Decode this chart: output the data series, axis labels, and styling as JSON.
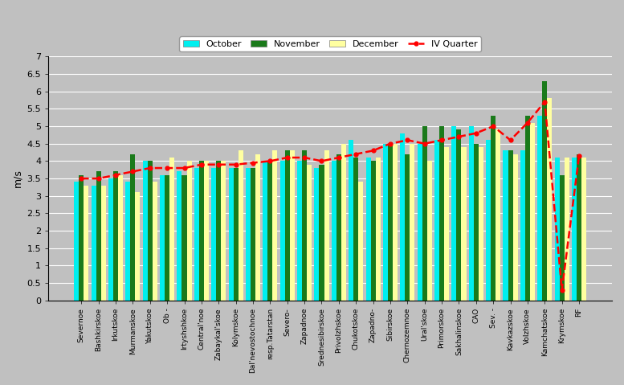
{
  "categories": [
    "Severnoe",
    "Bashkirskoe",
    "Irkutskoe",
    "Murmanskoe",
    "Yakutskoe",
    "Ob -",
    "Irtyshshkoe",
    "Central'noe",
    "Zabaykal'skoe",
    "Kolymskoe",
    "Dal'nevostochnoe",
    "resp.Tatarstan",
    "Severo-",
    "Zapadnoe",
    "Srednesibirskoe",
    "Privolzhskoe",
    "Chukotskoe",
    "Zapadno-",
    "Sibirskoe",
    "Chernozemnoe",
    "Ural'skoe",
    "Primorskoe",
    "Sakhalinskoe",
    "CAO",
    "Sev. -",
    "Kavkazskoe",
    "Volzhskoe",
    "Kamchatskoe",
    "Krymskoe",
    "RF"
  ],
  "october": [
    3.4,
    3.3,
    3.5,
    3.4,
    4.0,
    3.6,
    3.7,
    3.8,
    3.8,
    3.8,
    3.8,
    4.0,
    4.0,
    4.0,
    3.8,
    4.0,
    4.6,
    4.1,
    4.5,
    4.8,
    4.5,
    4.6,
    5.0,
    5.0,
    4.6,
    4.3,
    4.3,
    5.3,
    4.1,
    4.1
  ],
  "november": [
    3.6,
    3.7,
    3.7,
    4.2,
    4.0,
    3.6,
    3.6,
    4.0,
    4.0,
    3.8,
    3.8,
    4.0,
    4.3,
    4.3,
    3.9,
    4.2,
    4.1,
    4.0,
    4.5,
    4.2,
    5.0,
    5.0,
    4.9,
    4.5,
    5.3,
    4.3,
    5.3,
    6.3,
    3.6,
    4.2
  ],
  "december": [
    3.3,
    3.3,
    3.6,
    3.1,
    3.4,
    4.1,
    4.0,
    4.0,
    4.0,
    4.3,
    4.2,
    4.3,
    4.3,
    3.9,
    4.3,
    4.5,
    3.4,
    4.1,
    4.5,
    4.5,
    4.0,
    4.4,
    4.4,
    4.4,
    4.9,
    4.2,
    5.1,
    5.8,
    4.1,
    4.1
  ],
  "iv_quarter": [
    3.5,
    3.5,
    3.6,
    3.7,
    3.8,
    3.8,
    3.8,
    3.9,
    3.9,
    3.9,
    3.95,
    4.0,
    4.1,
    4.1,
    4.0,
    4.1,
    4.2,
    4.3,
    4.5,
    4.6,
    4.5,
    4.6,
    4.7,
    4.8,
    5.0,
    4.6,
    5.1,
    5.7,
    0.3,
    4.15
  ],
  "october_color": "#00EFEF",
  "november_color": "#1A7A1A",
  "december_color": "#FFFFA0",
  "iv_quarter_color": "#FF0000",
  "background_color": "#C0C0C0",
  "plot_bg_color": "#C0C0C0",
  "ylabel": "m/s",
  "ylim": [
    0,
    7
  ],
  "yticks": [
    0,
    0.5,
    1.0,
    1.5,
    2.0,
    2.5,
    3.0,
    3.5,
    4.0,
    4.5,
    5.0,
    5.5,
    6.0,
    6.5,
    7.0
  ]
}
